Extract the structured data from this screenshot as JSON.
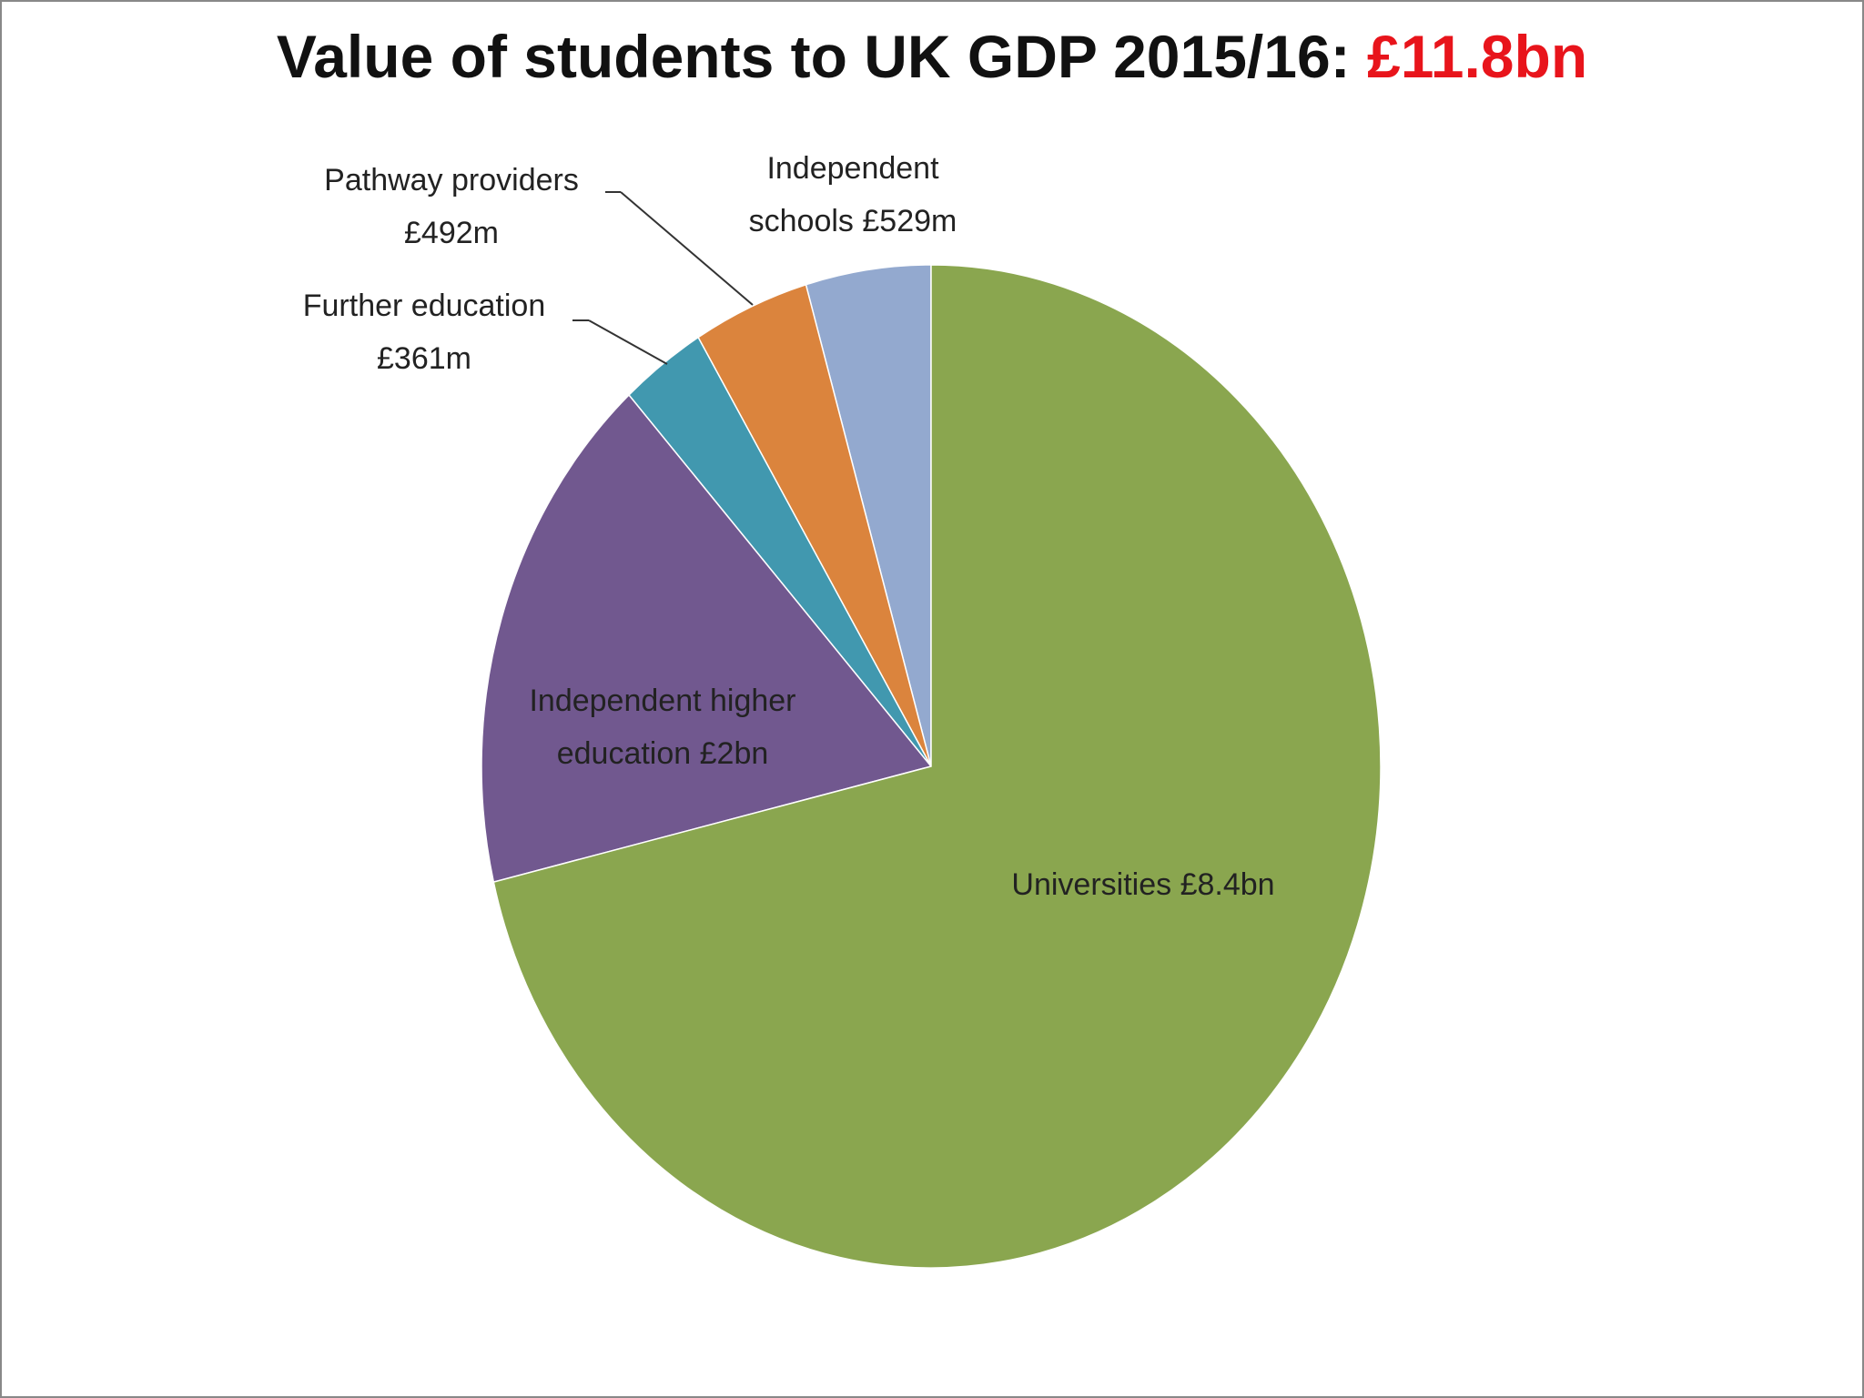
{
  "chart_data": {
    "type": "pie",
    "title": "Value of students to UK GDP 2015/16:",
    "title_value": "£11.8bn",
    "categories": [
      "Universities",
      "Independent higher education",
      "Further education",
      "Pathway providers",
      "Independent schools"
    ],
    "values": [
      8400,
      2000,
      361,
      492,
      529
    ],
    "value_labels": [
      "£8.4bn",
      "£2bn",
      "£361m",
      "£492m",
      "£529m"
    ],
    "colors": [
      "#8aa64f",
      "#71588f",
      "#4198af",
      "#db843d",
      "#93a9cf"
    ]
  }
}
